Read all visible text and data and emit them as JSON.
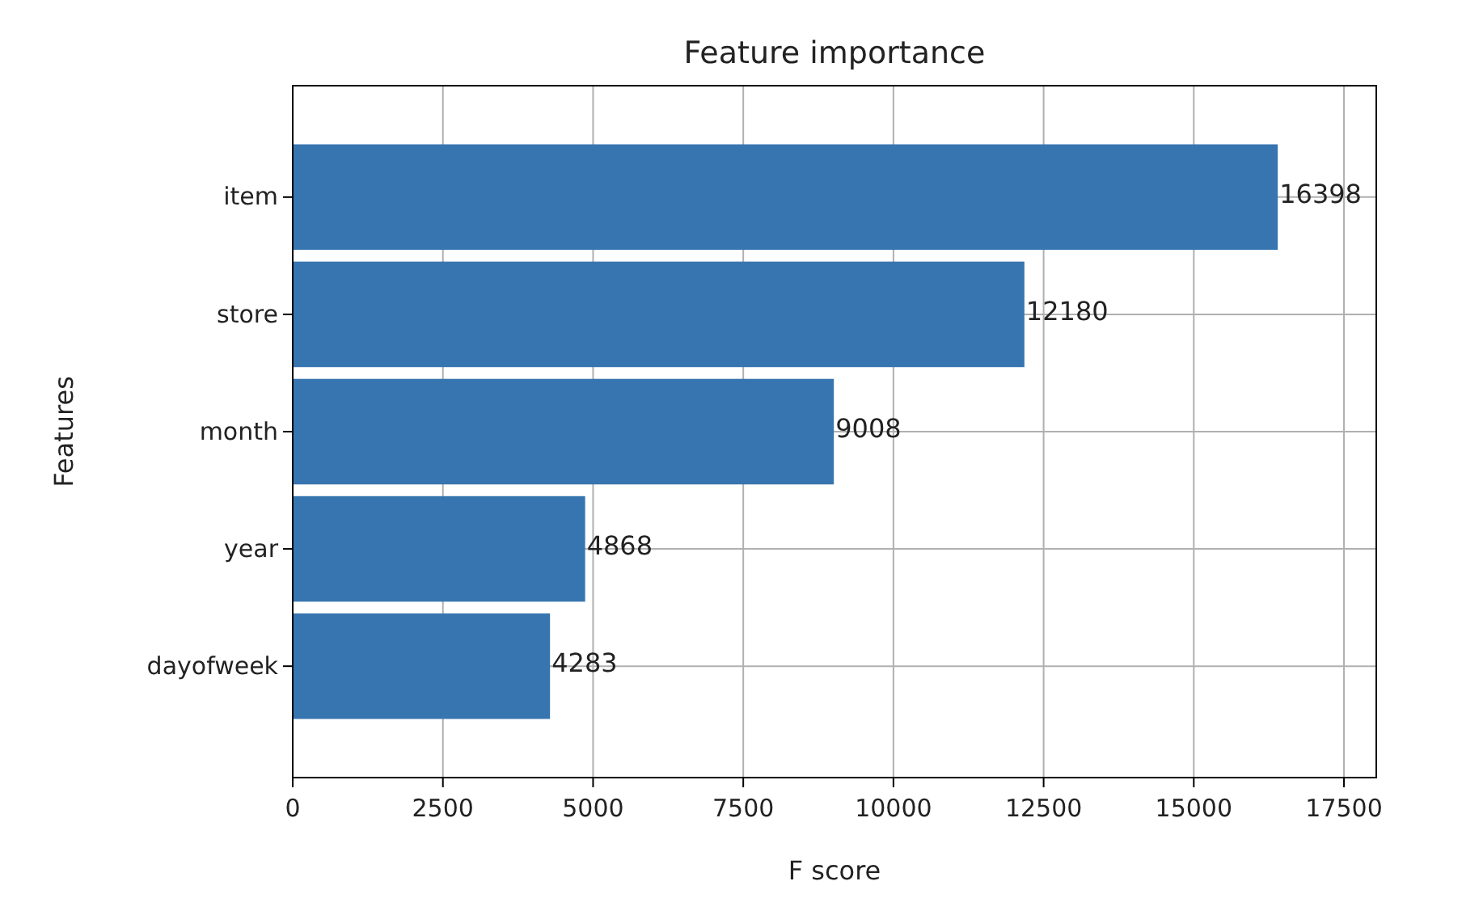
{
  "chart_data": {
    "type": "bar",
    "orientation": "horizontal",
    "title": "Feature importance",
    "xlabel": "F score",
    "ylabel": "Features",
    "categories": [
      "item",
      "store",
      "month",
      "year",
      "dayofweek"
    ],
    "values": [
      16398,
      12180,
      9008,
      4868,
      4283
    ],
    "color": "#3775b0",
    "xlim": [
      0,
      18038
    ],
    "xticks": [
      0,
      2500,
      5000,
      7500,
      10000,
      12500,
      15000,
      17500
    ],
    "grid": true,
    "data_labels": true,
    "legend": false
  }
}
